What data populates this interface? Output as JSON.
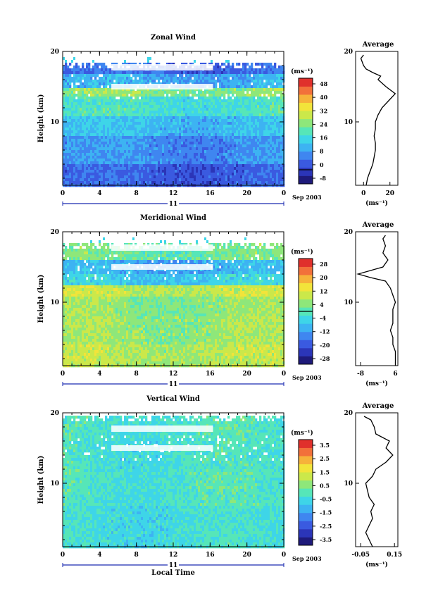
{
  "colors": {
    "cmap": [
      "#1e1a7a",
      "#2b35b8",
      "#3a5ae0",
      "#3f86f0",
      "#3db3f2",
      "#3ed5e8",
      "#56e6b8",
      "#8ee77a",
      "#cbe84a",
      "#f2e43a",
      "#f6b23a",
      "#f2703a",
      "#e0302c"
    ],
    "gap": "#ffffff",
    "frame": "#000000",
    "profile": "#000000"
  },
  "shared": {
    "x_ticks": [
      "0",
      "4",
      "8",
      "12",
      "16",
      "20",
      "0"
    ],
    "date_label": "11",
    "month_label": "Sep 2003",
    "y_ticks": [
      "20",
      "10"
    ],
    "height_label": "Height (km)",
    "time_label": "Local Time",
    "cb_unit": "(ms⁻¹)",
    "profile_title": "Average",
    "profile_unit": "(ms⁻¹)"
  },
  "chart_data": [
    {
      "type": "heatmap",
      "title": "Zonal Wind",
      "xlabel": "",
      "ylabel": "Height (km)",
      "xlim": [
        0,
        24
      ],
      "ylim": [
        1,
        20
      ],
      "colorbar": {
        "ticks": [
          "48",
          "40",
          "32",
          "24",
          "16",
          "8",
          "0",
          "-8"
        ],
        "range": [
          -8,
          52
        ],
        "zero_line": 0
      },
      "layers_km": [
        {
          "bottom": 1,
          "top": 4,
          "value": 4
        },
        {
          "bottom": 4,
          "top": 8,
          "value": 9
        },
        {
          "bottom": 8,
          "top": 11,
          "value": 14
        },
        {
          "bottom": 11,
          "top": 13.5,
          "value": 20
        },
        {
          "bottom": 13.5,
          "top": 15,
          "value": 26
        },
        {
          "bottom": 15,
          "top": 17,
          "value": 12
        },
        {
          "bottom": 17,
          "top": 18.3,
          "value": 5
        }
      ],
      "profile": {
        "title": "Average",
        "x_ticks": [
          "0",
          "20"
        ],
        "xlim": [
          -6,
          26
        ],
        "heights": [
          1,
          2,
          3,
          4,
          5,
          6,
          7,
          8,
          9,
          10,
          11,
          12,
          13,
          14,
          15,
          16,
          16.5,
          17,
          17.5,
          18,
          18.5,
          19,
          19.5
        ],
        "values": [
          2,
          3,
          5,
          7,
          8,
          9,
          9,
          8,
          9,
          9,
          11,
          14,
          19,
          24,
          17,
          11,
          13,
          7,
          2,
          0,
          -1,
          -2,
          0
        ]
      }
    },
    {
      "type": "heatmap",
      "title": "Meridional Wind",
      "xlabel": "",
      "ylabel": "Height (km)",
      "xlim": [
        0,
        24
      ],
      "ylim": [
        1,
        20
      ],
      "colorbar": {
        "ticks": [
          "28",
          "20",
          "12",
          "4",
          "-4",
          "-12",
          "-20",
          "-28"
        ],
        "range": [
          -32,
          32
        ],
        "zero_line": 0
      },
      "layers_km": [
        {
          "bottom": 1,
          "top": 4,
          "value": 8
        },
        {
          "bottom": 4,
          "top": 8,
          "value": 6
        },
        {
          "bottom": 8,
          "top": 11,
          "value": 5
        },
        {
          "bottom": 11,
          "top": 12.5,
          "value": 9
        },
        {
          "bottom": 12.5,
          "top": 14,
          "value": -6
        },
        {
          "bottom": 14,
          "top": 16,
          "value": -10
        },
        {
          "bottom": 16,
          "top": 18.3,
          "value": 2
        }
      ],
      "profile": {
        "title": "Average",
        "x_ticks": [
          "-8",
          "6"
        ],
        "xlim": [
          -10,
          7
        ],
        "heights": [
          1,
          2,
          3,
          4,
          5,
          6,
          7,
          8,
          9,
          10,
          11,
          12,
          13,
          13.5,
          14,
          14.5,
          15,
          16,
          17,
          18,
          19,
          19.5
        ],
        "values": [
          6,
          6,
          6,
          5,
          5,
          4,
          5,
          5,
          5,
          6,
          5,
          4,
          2,
          -4,
          -9,
          -4,
          1,
          3,
          1,
          2,
          1,
          2
        ]
      }
    },
    {
      "type": "heatmap",
      "title": "Vertical Wind",
      "xlabel": "Local Time",
      "ylabel": "Height (km)",
      "xlim": [
        0,
        24
      ],
      "ylim": [
        1,
        20
      ],
      "colorbar": {
        "ticks": [
          "3.5",
          "2.5",
          "1.5",
          "0.5",
          "-0.5",
          "-1.5",
          "-2.5",
          "-3.5"
        ],
        "range": [
          -4,
          4
        ],
        "zero_line": null
      },
      "layers_km": [
        {
          "bottom": 1,
          "top": 7,
          "value": -0.4
        },
        {
          "bottom": 7,
          "top": 12,
          "value": -0.2
        },
        {
          "bottom": 12,
          "top": 16,
          "value": -0.3
        },
        {
          "bottom": 16,
          "top": 19.5,
          "value": -0.2
        }
      ],
      "profile": {
        "title": "Average",
        "x_ticks": [
          "-0.05",
          "0.15"
        ],
        "xlim": [
          -0.08,
          0.17
        ],
        "heights": [
          1,
          2,
          3,
          4,
          5,
          6,
          7,
          8,
          9,
          10,
          11,
          12,
          13,
          14,
          15,
          16,
          17,
          18,
          19,
          19.5
        ],
        "values": [
          0.02,
          0.0,
          -0.02,
          0.0,
          0.02,
          0.01,
          0.03,
          0.0,
          -0.01,
          -0.02,
          0.02,
          0.04,
          0.1,
          0.14,
          0.1,
          0.12,
          0.04,
          0.03,
          0.01,
          -0.03
        ]
      }
    }
  ]
}
